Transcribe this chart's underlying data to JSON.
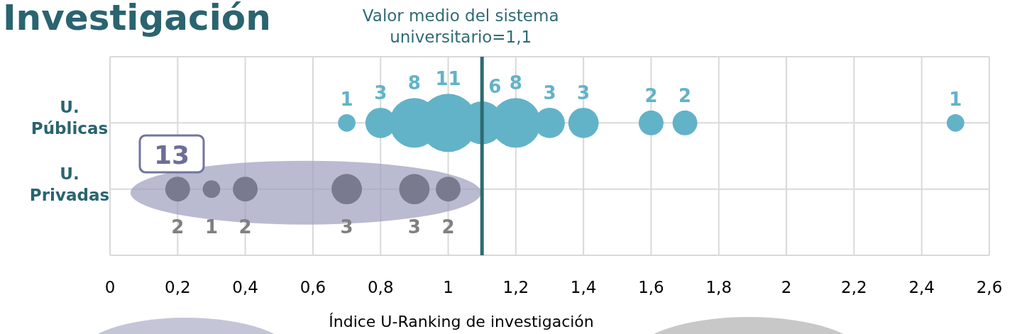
{
  "chart_data": {
    "type": "bubble",
    "title": "Investigación",
    "xlabel": "Índice U-Ranking de investigación",
    "orientation": "horizontal",
    "categories": [
      "U. Públicas",
      "U. Privadas"
    ],
    "xlim": [
      0,
      2.6
    ],
    "xticks": [
      0,
      {
        "value": 0.2,
        "label": "0,2"
      },
      {
        "value": 0.4,
        "label": "0,4"
      },
      {
        "value": 0.6,
        "label": "0,6"
      },
      {
        "value": 0.8,
        "label": "0,8"
      },
      1,
      {
        "value": 1.2,
        "label": "1,2"
      },
      {
        "value": 1.4,
        "label": "1,4"
      },
      {
        "value": 1.6,
        "label": "1,6"
      },
      {
        "value": 1.8,
        "label": "1,8"
      },
      2,
      {
        "value": 2.2,
        "label": "2,2"
      },
      {
        "value": 2.4,
        "label": "2,4"
      },
      {
        "value": 2.6,
        "label": "2,6"
      }
    ],
    "grid": true,
    "series": [
      {
        "color": "#62b3c8",
        "x": [
          "U. Públicas",
          "U. Públicas",
          "U. Públicas",
          "U. Públicas",
          "U. Públicas",
          "U. Públicas",
          "U. Públicas",
          "U. Públicas",
          "U. Públicas",
          "U. Públicas",
          "U. Públicas"
        ],
        "values": [
          0.7,
          0.8,
          0.9,
          1.0,
          1.1,
          1.2,
          1.3,
          1.4,
          1.6,
          1.7,
          2.5
        ],
        "sizes": [
          1,
          3,
          8,
          11,
          6,
          8,
          3,
          3,
          2,
          2,
          1
        ],
        "value_labels": [
          "1",
          "3",
          "8",
          "11",
          "6",
          "8",
          "3",
          "3",
          "2",
          "2",
          "1"
        ]
      },
      {
        "color": "#7a7a8e",
        "x": [
          "U. Privadas",
          "U. Privadas",
          "U. Privadas",
          "U. Privadas",
          "U. Privadas",
          "U. Privadas"
        ],
        "values": [
          0.2,
          0.3,
          0.4,
          0.7,
          0.9,
          1.0
        ],
        "sizes": [
          2,
          1,
          2,
          3,
          3,
          2
        ],
        "value_labels": [
          "2",
          "1",
          "2",
          "3",
          "3",
          "2"
        ]
      }
    ],
    "ref_lines": [
      {
        "axis": "x",
        "value": 1.1,
        "label": "Valor medio del sistema universitario=1,1",
        "color": "#2e6b73"
      }
    ],
    "annotations": [
      "13"
    ]
  }
}
